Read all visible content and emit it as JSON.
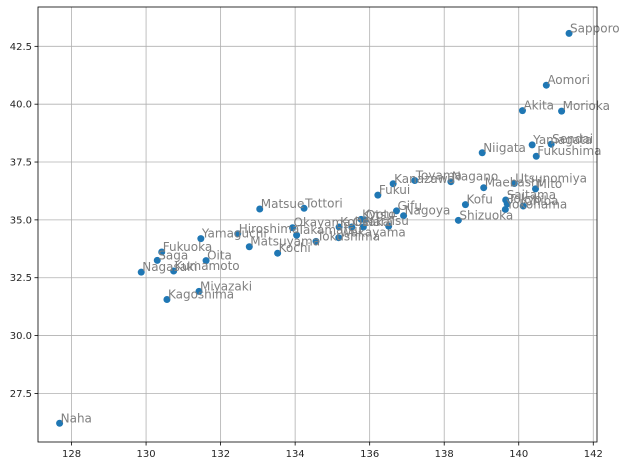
{
  "chart_data": {
    "type": "scatter",
    "title": "",
    "xlabel": "",
    "ylabel": "",
    "xlim": [
      127.1,
      142.1
    ],
    "ylim": [
      25.4,
      44.2
    ],
    "x_ticks": [
      128,
      130,
      132,
      134,
      136,
      138,
      140,
      142
    ],
    "y_ticks": [
      27.5,
      30.0,
      32.5,
      35.0,
      37.5,
      40.0,
      42.5
    ],
    "x_tick_labels": [
      "128",
      "130",
      "132",
      "134",
      "136",
      "138",
      "140",
      "142"
    ],
    "y_tick_labels": [
      "27.5",
      "30.0",
      "32.5",
      "35.0",
      "37.5",
      "40.0",
      "42.5"
    ],
    "grid": true,
    "marker_color": "#1f77b4",
    "label_color": "#808080",
    "points": [
      {
        "label": "Sapporo",
        "x": 141.35,
        "y": 43.06
      },
      {
        "label": "Aomori",
        "x": 140.74,
        "y": 40.82
      },
      {
        "label": "Morioka",
        "x": 141.15,
        "y": 39.7
      },
      {
        "label": "Akita",
        "x": 140.1,
        "y": 39.72
      },
      {
        "label": "Sendai",
        "x": 140.87,
        "y": 38.27
      },
      {
        "label": "Yamagata",
        "x": 140.36,
        "y": 38.24
      },
      {
        "label": "Fukushima",
        "x": 140.47,
        "y": 37.75
      },
      {
        "label": "Niigata",
        "x": 139.02,
        "y": 37.9
      },
      {
        "label": "Utsunomiya",
        "x": 139.88,
        "y": 36.57
      },
      {
        "label": "Mito",
        "x": 140.45,
        "y": 36.34
      },
      {
        "label": "Maebashi",
        "x": 139.06,
        "y": 36.39
      },
      {
        "label": "Saitama",
        "x": 139.65,
        "y": 35.86
      },
      {
        "label": "Tokyo",
        "x": 139.69,
        "y": 35.69
      },
      {
        "label": "Chiba",
        "x": 140.12,
        "y": 35.6
      },
      {
        "label": "Yokohama",
        "x": 139.64,
        "y": 35.45
      },
      {
        "label": "Kofu",
        "x": 138.57,
        "y": 35.66
      },
      {
        "label": "Nagano",
        "x": 138.18,
        "y": 36.65
      },
      {
        "label": "Toyama",
        "x": 137.21,
        "y": 36.7
      },
      {
        "label": "Kanazawa",
        "x": 136.63,
        "y": 36.56
      },
      {
        "label": "Fukui",
        "x": 136.22,
        "y": 36.07
      },
      {
        "label": "Shizuoka",
        "x": 138.38,
        "y": 34.98
      },
      {
        "label": "Gifu",
        "x": 136.72,
        "y": 35.39
      },
      {
        "label": "Nagoya",
        "x": 136.91,
        "y": 35.18
      },
      {
        "label": "Tsu",
        "x": 136.51,
        "y": 34.73
      },
      {
        "label": "Otsu",
        "x": 135.87,
        "y": 35.0
      },
      {
        "label": "Kyoto",
        "x": 135.77,
        "y": 35.02
      },
      {
        "label": "Osaka",
        "x": 135.52,
        "y": 34.69
      },
      {
        "label": "Kobe",
        "x": 135.18,
        "y": 34.69
      },
      {
        "label": "Nara",
        "x": 135.83,
        "y": 34.69
      },
      {
        "label": "Wakayama",
        "x": 135.17,
        "y": 34.23
      },
      {
        "label": "Tottori",
        "x": 134.24,
        "y": 35.5
      },
      {
        "label": "Matsue",
        "x": 133.05,
        "y": 35.47
      },
      {
        "label": "Okayama",
        "x": 133.93,
        "y": 34.66
      },
      {
        "label": "Hiroshima",
        "x": 132.46,
        "y": 34.4
      },
      {
        "label": "Yamaguchi",
        "x": 131.47,
        "y": 34.19
      },
      {
        "label": "Tokushima",
        "x": 134.56,
        "y": 34.07
      },
      {
        "label": "Takamatsu",
        "x": 134.04,
        "y": 34.34
      },
      {
        "label": "Matsuyama",
        "x": 132.77,
        "y": 33.84
      },
      {
        "label": "Kochi",
        "x": 133.53,
        "y": 33.56
      },
      {
        "label": "Fukuoka",
        "x": 130.42,
        "y": 33.61
      },
      {
        "label": "Saga",
        "x": 130.3,
        "y": 33.25
      },
      {
        "label": "Nagasaki",
        "x": 129.87,
        "y": 32.74
      },
      {
        "label": "Kumamoto",
        "x": 130.74,
        "y": 32.79
      },
      {
        "label": "Oita",
        "x": 131.61,
        "y": 33.24
      },
      {
        "label": "Miyazaki",
        "x": 131.42,
        "y": 31.91
      },
      {
        "label": "Kagoshima",
        "x": 130.56,
        "y": 31.56
      },
      {
        "label": "Naha",
        "x": 127.68,
        "y": 26.21
      }
    ]
  }
}
